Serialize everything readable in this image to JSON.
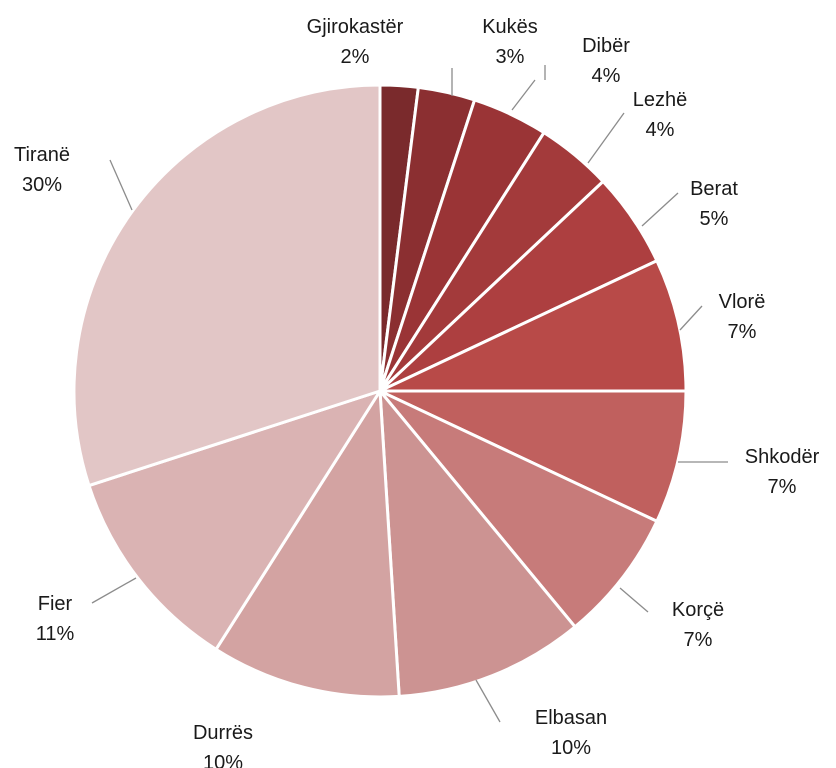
{
  "chart_data": {
    "type": "pie",
    "title": "",
    "start_angle_deg": 0,
    "direction": "clockwise",
    "labels_position": "outside-with-leader-lines",
    "slices": [
      {
        "name": "Gjirokastër",
        "value": 2,
        "label": "2%",
        "color": "#7a2a2c"
      },
      {
        "name": "Kukës",
        "value": 3,
        "label": "3%",
        "color": "#8b2f31"
      },
      {
        "name": "Dibër",
        "value": 4,
        "label": "4%",
        "color": "#9a3436"
      },
      {
        "name": "Lezhë",
        "value": 4,
        "label": "4%",
        "color": "#a33a3b"
      },
      {
        "name": "Berat",
        "value": 5,
        "label": "5%",
        "color": "#ad3f40"
      },
      {
        "name": "Vlorë",
        "value": 7,
        "label": "7%",
        "color": "#b84a48"
      },
      {
        "name": "Shkodër",
        "value": 7,
        "label": "7%",
        "color": "#c0605e"
      },
      {
        "name": "Korçë",
        "value": 7,
        "label": "7%",
        "color": "#c77b7a"
      },
      {
        "name": "Elbasan",
        "value": 10,
        "label": "10%",
        "color": "#cc9392"
      },
      {
        "name": "Durrës",
        "value": 10,
        "label": "10%",
        "color": "#d3a3a2"
      },
      {
        "name": "Fier",
        "value": 11,
        "label": "11%",
        "color": "#dab3b3"
      },
      {
        "name": "Tiranë",
        "value": 30,
        "label": "30%",
        "color": "#e2c6c6"
      }
    ]
  }
}
